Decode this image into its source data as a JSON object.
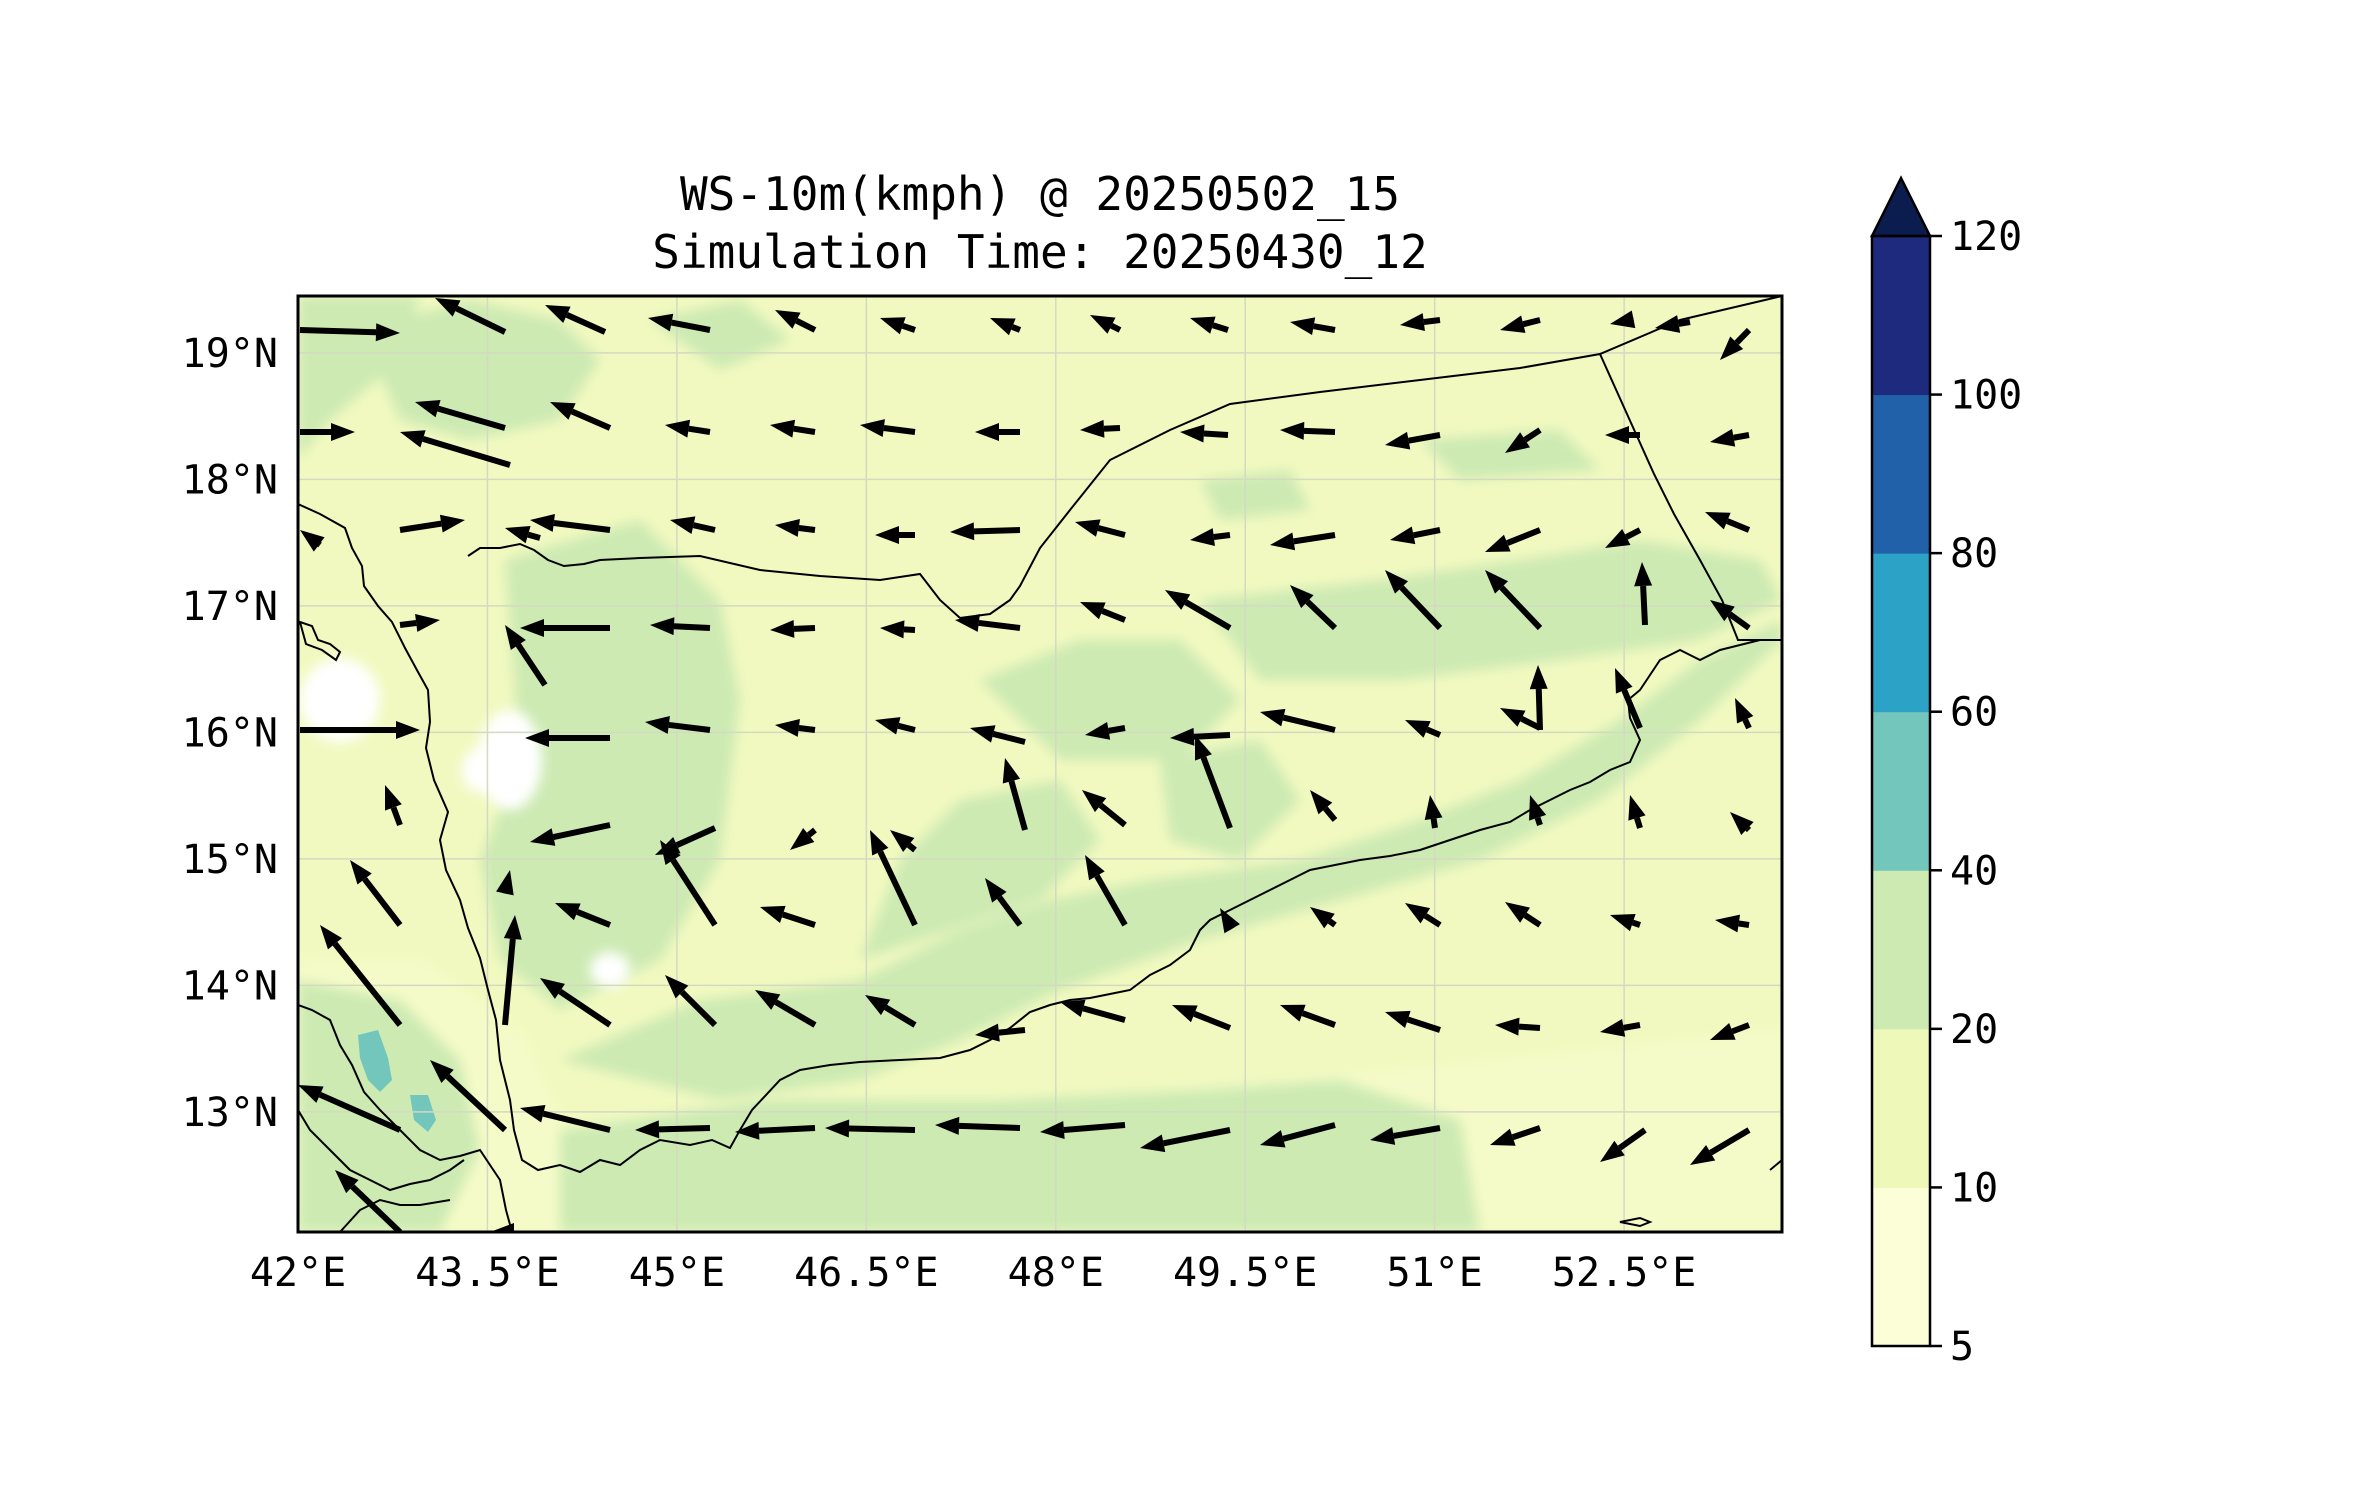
{
  "title": {
    "line1": "WS-10m(kmph) @ 20250502_15",
    "line2": "Simulation Time: 20250430_12"
  },
  "map": {
    "lon_range": [
      42.0,
      53.75
    ],
    "lat_range": [
      12.05,
      19.45
    ],
    "x_ticks": [
      "42°E",
      "43.5°E",
      "45°E",
      "46.5°E",
      "48°E",
      "49.5°E",
      "51°E",
      "52.5°E"
    ],
    "x_tick_values": [
      42.0,
      43.5,
      45.0,
      46.5,
      48.0,
      49.5,
      51.0,
      52.5
    ],
    "y_ticks": [
      "19°N",
      "18°N",
      "17°N",
      "16°N",
      "15°N",
      "14°N",
      "13°N"
    ],
    "y_tick_values": [
      19,
      18,
      17,
      16,
      15,
      14,
      13
    ],
    "gridlines": true,
    "background_color": "#f1f9c0",
    "sea_color": "#f5fbc8",
    "boundary_color": "#000000",
    "arrow_color": "#000000"
  },
  "colorbar": {
    "levels": [
      "5",
      "10",
      "20",
      "40",
      "60",
      "80",
      "100",
      "120"
    ],
    "level_values": [
      5,
      10,
      20,
      40,
      60,
      80,
      100,
      120
    ],
    "colors": [
      "#fcfed8",
      "#eef8b8",
      "#cdeab3",
      "#73c6bc",
      "#2ba2c6",
      "#2161a9",
      "#1d2a7d"
    ],
    "extend_color": "#0b1d4e",
    "extend": "max"
  }
}
